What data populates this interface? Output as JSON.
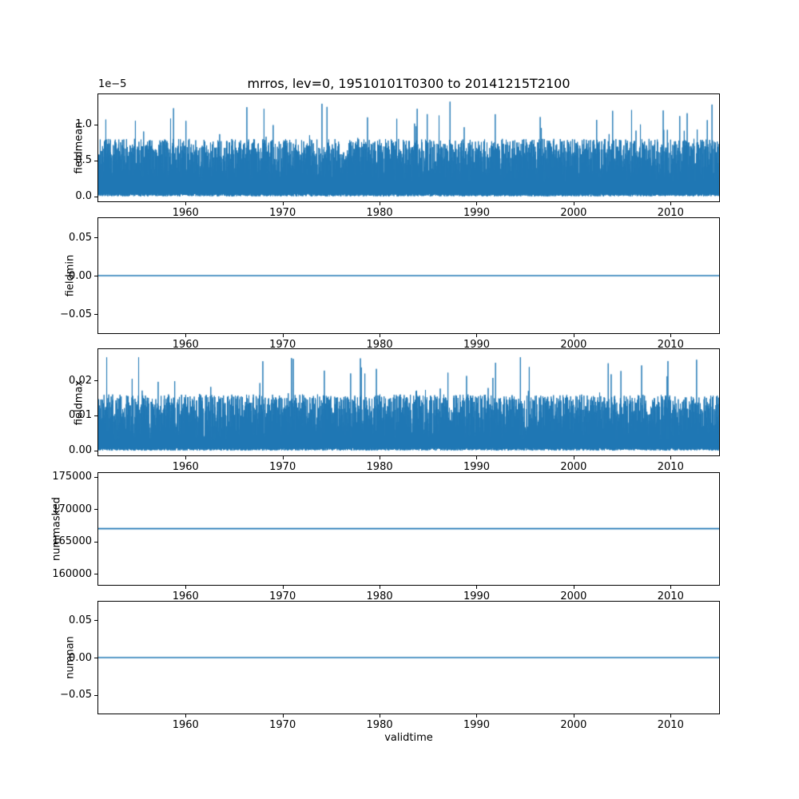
{
  "figure": {
    "title": "mrros, lev=0, 19510101T0300 to 20141215T2100",
    "xlabel": "validtime",
    "line_color": "#1f77b4",
    "background": "#ffffff",
    "grid": false,
    "legend": "none"
  },
  "chart_data": [
    {
      "name": "fieldmean",
      "type": "line",
      "title": "mrros, lev=0, 19510101T0300 to 20141215T2100",
      "ylabel": "fieldmean",
      "offset_label": "1e−5",
      "units": "1e-5",
      "xlim": [
        1951,
        2015
      ],
      "xticks": [
        1960,
        1970,
        1980,
        1990,
        2000,
        2010
      ],
      "xtick_labels": [
        "1960",
        "1970",
        "1980",
        "1990",
        "2000",
        "2010"
      ],
      "ylim": [
        -0.07,
        1.42
      ],
      "yticks": [
        0.0,
        0.5,
        1.0
      ],
      "ytick_labels": [
        "0.0",
        "0.5",
        "1.0"
      ],
      "series": {
        "kind": "noise",
        "seed": 7,
        "n": 4200,
        "low_max": 0.04,
        "peak_base": 0.2,
        "peak_var": 0.6,
        "spike_prob": 0.02,
        "spike_base": 0.8,
        "spike_var": 0.52,
        "approx_min": 0.0,
        "approx_typical_max": 0.75,
        "approx_abs_max": 1.32
      },
      "summary": "Dense noisy time series from 1951 to 2015, values 0 to ~1.3 (x1e-5), solid band up to ~0.7 with spikes; tallest spike ~1.32e-5 near 1991"
    },
    {
      "name": "fieldmin",
      "type": "line",
      "ylabel": "fieldmin",
      "xlim": [
        1951,
        2015
      ],
      "xticks": [
        1960,
        1970,
        1980,
        1990,
        2000,
        2010
      ],
      "xtick_labels": [
        "1960",
        "1970",
        "1980",
        "1990",
        "2000",
        "2010"
      ],
      "ylim": [
        -0.075,
        0.075
      ],
      "yticks": [
        -0.05,
        0.0,
        0.05
      ],
      "ytick_labels": [
        "−0.05",
        "0.00",
        "0.05"
      ],
      "series": {
        "kind": "constant",
        "value": 0.0
      },
      "summary": "Constant flat line at 0.00 for the whole period"
    },
    {
      "name": "fieldmax",
      "type": "line",
      "ylabel": "fieldmax",
      "xlim": [
        1951,
        2015
      ],
      "xticks": [
        1960,
        1970,
        1980,
        1990,
        2000,
        2010
      ],
      "xtick_labels": [
        "1960",
        "1970",
        "1980",
        "1990",
        "2000",
        "2010"
      ],
      "ylim": [
        -0.0014,
        0.0289
      ],
      "yticks": [
        0.0,
        0.01,
        0.02
      ],
      "ytick_labels": [
        "0.00",
        "0.01",
        "0.02"
      ],
      "series": {
        "kind": "noise",
        "seed": 11,
        "n": 4200,
        "low_max": 0.0008,
        "peak_base": 0.003,
        "peak_var": 0.013,
        "spike_prob": 0.015,
        "spike_base": 0.016,
        "spike_var": 0.012,
        "approx_min": 0.0,
        "approx_typical_max": 0.019,
        "approx_abs_max": 0.0285
      },
      "summary": "Dense noisy time series, values 0 to ~0.028, solid band up to ~0.016 with spikes; tallest spikes ~0.028 near 1990 and 2009"
    },
    {
      "name": "nummasked",
      "type": "line",
      "ylabel": "nummasked",
      "xlim": [
        1951,
        2015
      ],
      "xticks": [
        1960,
        1970,
        1980,
        1990,
        2000,
        2010
      ],
      "xtick_labels": [
        "1960",
        "1970",
        "1980",
        "1990",
        "2000",
        "2010"
      ],
      "ylim": [
        158300,
        175600
      ],
      "yticks": [
        160000,
        165000,
        170000,
        175000
      ],
      "ytick_labels": [
        "160000",
        "165000",
        "170000",
        "175000"
      ],
      "series": {
        "kind": "constant",
        "value": 167000
      },
      "summary": "Constant flat line at ~167000 for the whole period"
    },
    {
      "name": "numnan",
      "type": "line",
      "ylabel": "numnan",
      "xlabel": "validtime",
      "xlim": [
        1951,
        2015
      ],
      "xticks": [
        1960,
        1970,
        1980,
        1990,
        2000,
        2010
      ],
      "xtick_labels": [
        "1960",
        "1970",
        "1980",
        "1990",
        "2000",
        "2010"
      ],
      "ylim": [
        -0.075,
        0.075
      ],
      "yticks": [
        -0.05,
        0.0,
        0.05
      ],
      "ytick_labels": [
        "−0.05",
        "0.00",
        "0.05"
      ],
      "series": {
        "kind": "constant",
        "value": 0.0
      },
      "summary": "Constant flat line at 0.00 for the whole period"
    }
  ]
}
